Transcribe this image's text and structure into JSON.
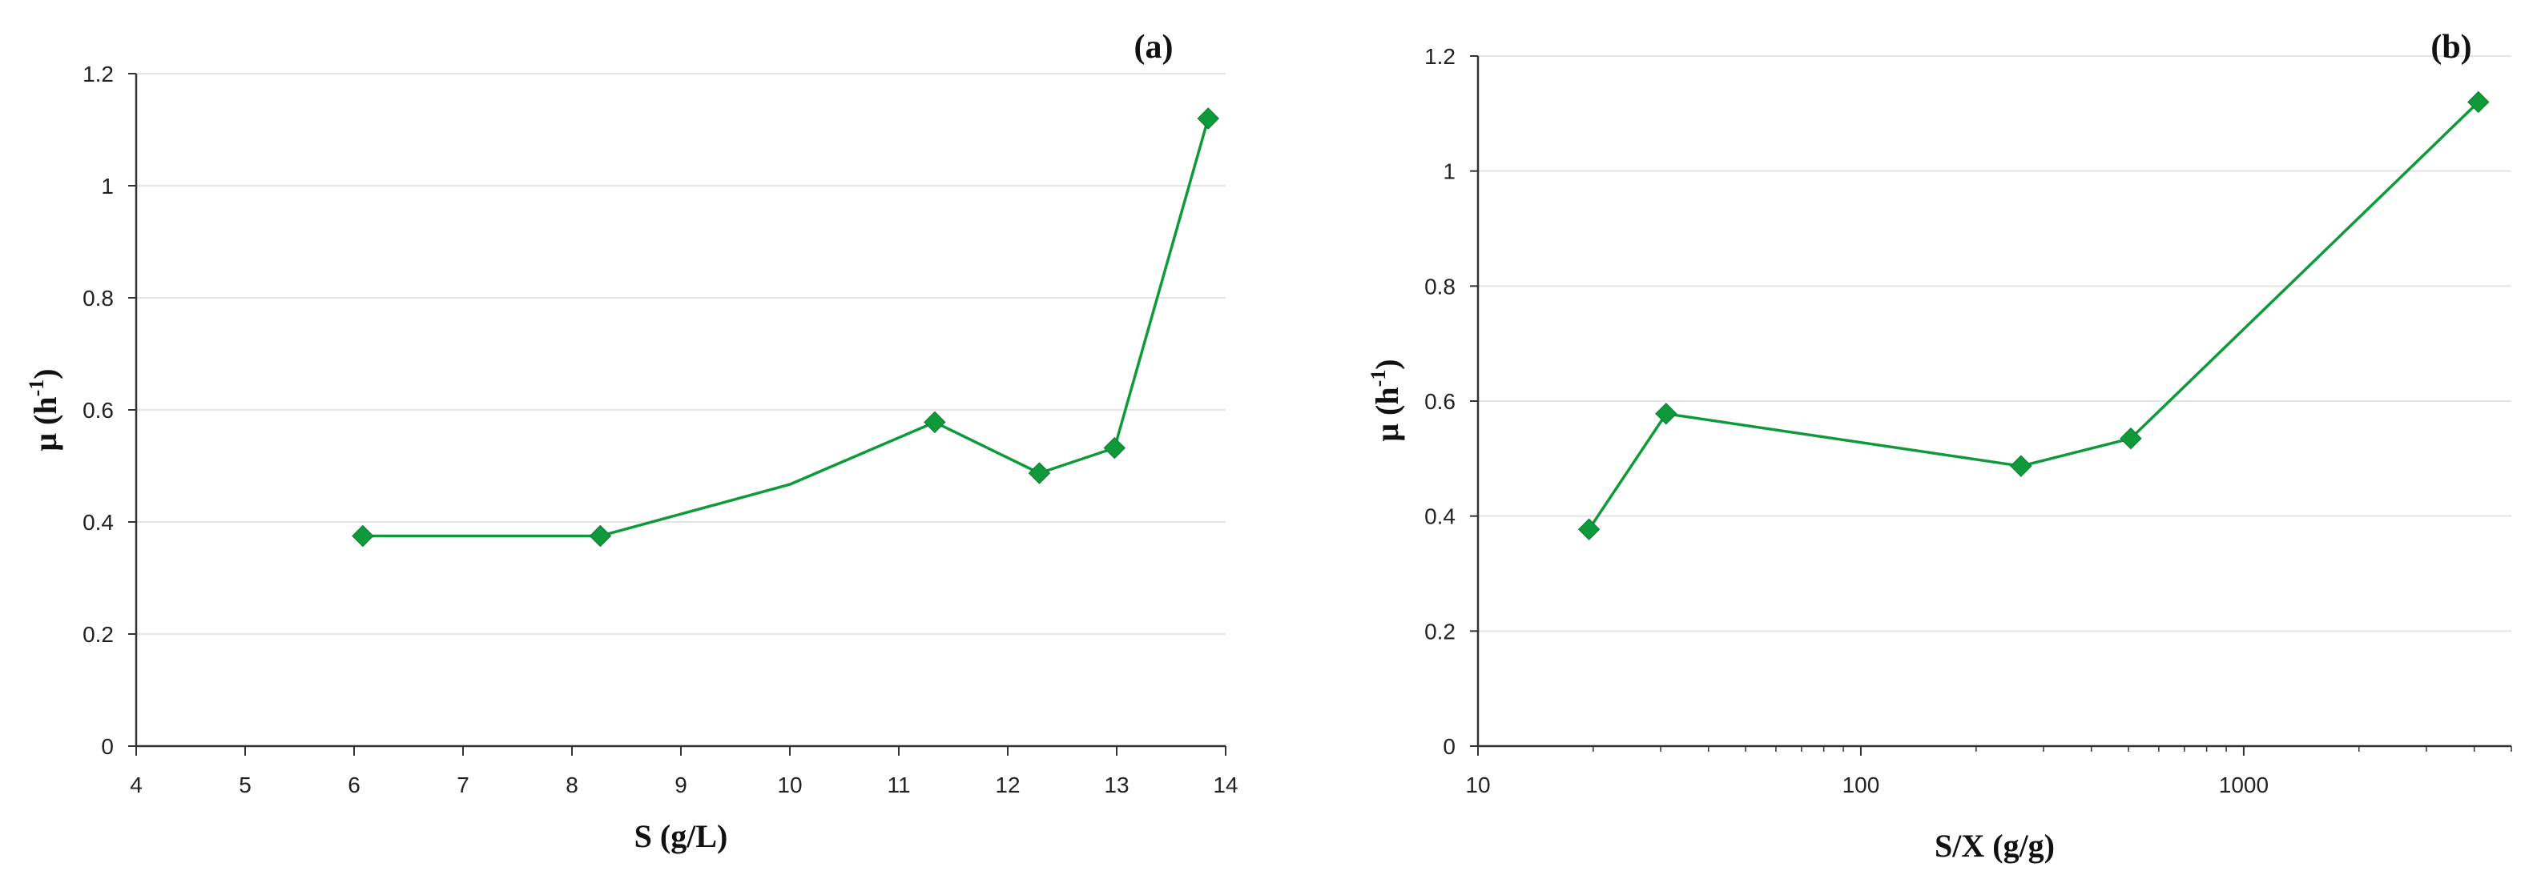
{
  "chart_data": [
    {
      "type": "line",
      "panel_label": "(a)",
      "xlabel": "S (g/L)",
      "ylabel": {
        "base": "μ (h",
        "sup": "-1",
        "end": ")"
      },
      "xscale": "linear",
      "xlim": [
        4,
        14
      ],
      "ylim": [
        0,
        1.2
      ],
      "x_ticks": [
        4,
        5,
        6,
        7,
        8,
        9,
        10,
        11,
        12,
        13,
        14
      ],
      "x_tick_labels": [
        "4",
        "5",
        "6",
        "7",
        "8",
        "9",
        "10",
        "11",
        "12",
        "13",
        "14"
      ],
      "y_ticks": [
        0,
        0.2,
        0.4,
        0.6,
        0.8,
        1.0,
        1.2
      ],
      "y_tick_labels": [
        "0",
        "0.2",
        "0.4",
        "0.6",
        "0.8",
        "1",
        "1.2"
      ],
      "grid": "horizontal",
      "color": "#0e9a3a",
      "series": [
        {
          "x": [
            6.08,
            8.26,
            10.0,
            11.33,
            12.29,
            12.98,
            13.84
          ],
          "y": [
            0.375,
            0.375,
            0.467,
            0.578,
            0.487,
            0.532,
            1.12
          ],
          "markers": [
            true,
            true,
            false,
            true,
            true,
            true,
            true
          ]
        }
      ]
    },
    {
      "type": "line",
      "panel_label": "(b)",
      "xlabel": "S/X (g/g)",
      "ylabel": {
        "base": "μ (h",
        "sup": "-1",
        "end": ")"
      },
      "xscale": "log",
      "xlim": [
        10,
        5000
      ],
      "ylim": [
        0,
        1.2
      ],
      "x_ticks": [
        10,
        100,
        1000
      ],
      "x_tick_labels": [
        "10",
        "100",
        "1000"
      ],
      "x_minor_ticks": [
        20,
        30,
        40,
        50,
        60,
        70,
        80,
        90,
        200,
        300,
        400,
        500,
        600,
        700,
        800,
        900,
        2000,
        3000,
        4000,
        5000
      ],
      "y_ticks": [
        0,
        0.2,
        0.4,
        0.6,
        0.8,
        1.0,
        1.2
      ],
      "y_tick_labels": [
        "0",
        "0.2",
        "0.4",
        "0.6",
        "0.8",
        "1",
        "1.2"
      ],
      "grid": "horizontal",
      "color": "#0e9a3a",
      "series": [
        {
          "x": [
            19.5,
            31,
            262,
            507,
            4100
          ],
          "y": [
            0.377,
            0.578,
            0.487,
            0.535,
            1.12
          ],
          "markers": [
            true,
            true,
            true,
            true,
            true
          ]
        }
      ]
    }
  ]
}
